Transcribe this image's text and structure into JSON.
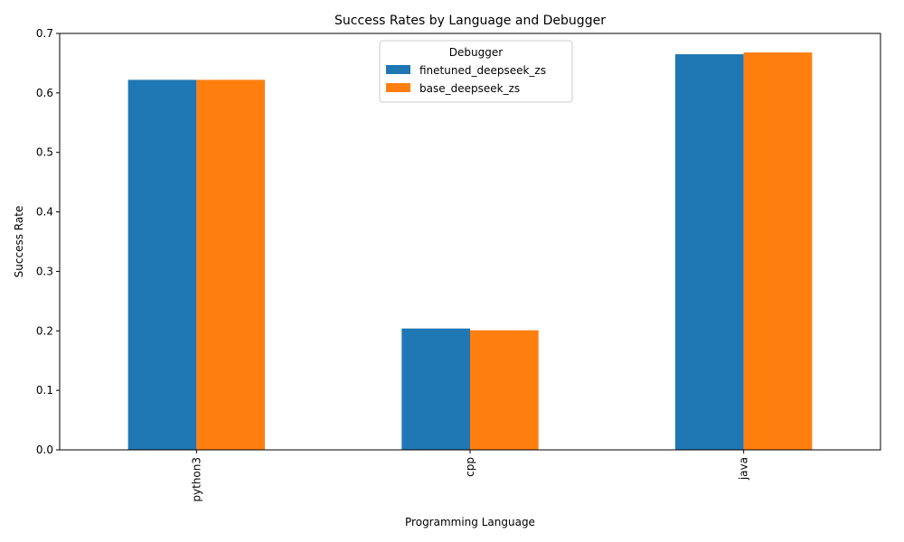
{
  "chart_data": {
    "type": "bar",
    "title": "Success Rates by Language and Debugger",
    "xlabel": "Programming Language",
    "ylabel": "Success Rate",
    "categories": [
      "python3",
      "cpp",
      "java"
    ],
    "series": [
      {
        "name": "finetuned_deepseek_zs",
        "color": "#1f77b4",
        "values": [
          0.622,
          0.204,
          0.665
        ]
      },
      {
        "name": "base_deepseek_zs",
        "color": "#ff7f0e",
        "values": [
          0.622,
          0.201,
          0.668
        ]
      }
    ],
    "ylim": [
      0,
      0.7
    ],
    "yticks": [
      "0.0",
      "0.1",
      "0.2",
      "0.3",
      "0.4",
      "0.5",
      "0.6",
      "0.7"
    ],
    "grid": false,
    "legend": {
      "title": "Debugger",
      "placement": "top-center"
    }
  }
}
